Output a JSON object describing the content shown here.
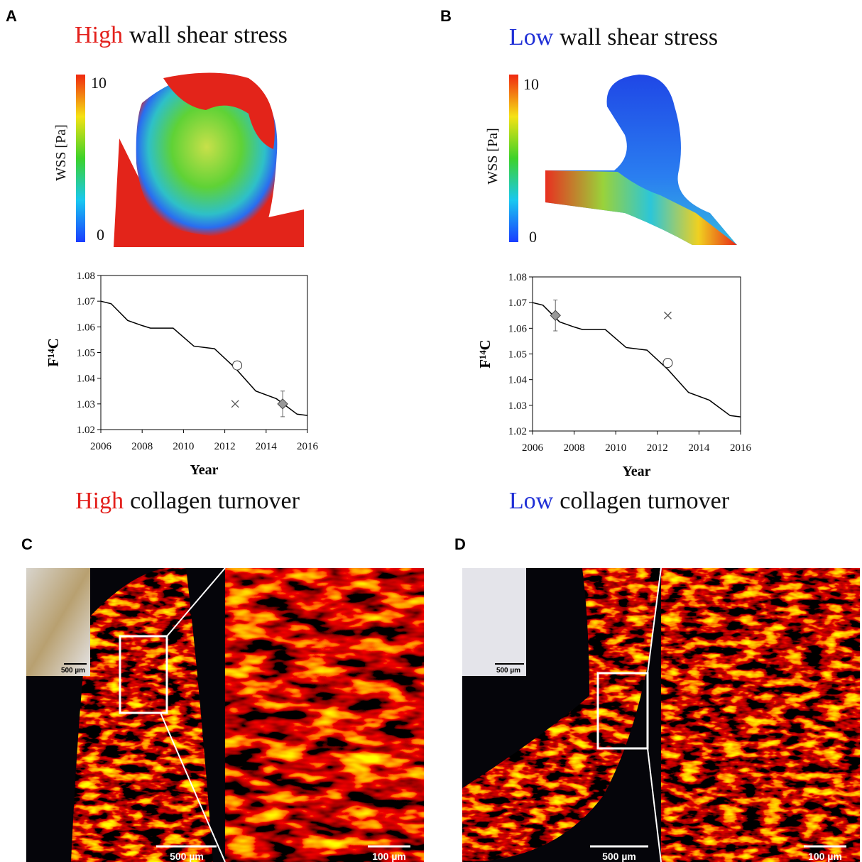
{
  "panels": [
    {
      "label": "A",
      "title_highlight": "High",
      "title_rest": "wall shear stress",
      "colorbar_label": "WSS [Pa]",
      "colorbar_max": "10",
      "colorbar_min": "0",
      "footer_highlight": "High",
      "footer_rest": "collagen turnover"
    },
    {
      "label": "B",
      "title_highlight": "Low",
      "title_rest": "wall shear stress",
      "colorbar_label": "WSS [Pa]",
      "colorbar_max": "10",
      "colorbar_min": "0",
      "footer_highlight": "Low",
      "footer_rest": "collagen turnover"
    },
    {
      "label": "C",
      "scale_bars": [
        "500 µm",
        "500 µm",
        "100 µm"
      ]
    },
    {
      "label": "D",
      "scale_bars": [
        "500 µm",
        "500 µm",
        "100 µm"
      ]
    }
  ],
  "chart_data": [
    {
      "type": "line",
      "xlabel": "Year",
      "ylabel": "F¹⁴C",
      "xlim": [
        2006,
        2016
      ],
      "xticks": [
        2006,
        2008,
        2010,
        2012,
        2014,
        2016
      ],
      "ylim": [
        1.02,
        1.08
      ],
      "yticks": [
        1.02,
        1.03,
        1.04,
        1.05,
        1.06,
        1.07,
        1.08
      ],
      "series": [
        {
          "color": "#000000",
          "x": [
            2006,
            2006.5,
            2007.3,
            2008,
            2008.4,
            2009.5,
            2010.5,
            2011.5,
            2012.5,
            2013.5,
            2014.5,
            2015.5,
            2016
          ],
          "values": [
            1.07,
            1.069,
            1.0625,
            1.0605,
            1.0595,
            1.0595,
            1.0525,
            1.0515,
            1.044,
            1.035,
            1.032,
            1.026,
            1.0255
          ]
        },
        {
          "marker": "circle",
          "color": "#ffffff",
          "x": [
            2012.6
          ],
          "values": [
            1.045
          ]
        },
        {
          "marker": "cross",
          "color": "#555555",
          "x": [
            2012.5
          ],
          "values": [
            1.03
          ]
        },
        {
          "marker": "diamond",
          "color": "#999999",
          "x": [
            2014.8
          ],
          "values": [
            1.03
          ],
          "errors": [
            0.005
          ]
        }
      ]
    },
    {
      "type": "line",
      "xlabel": "Year",
      "ylabel": "F¹⁴C",
      "xlim": [
        2006,
        2016
      ],
      "xticks": [
        2006,
        2008,
        2010,
        2012,
        2014,
        2016
      ],
      "ylim": [
        1.02,
        1.08
      ],
      "yticks": [
        1.02,
        1.03,
        1.04,
        1.05,
        1.06,
        1.07,
        1.08
      ],
      "series": [
        {
          "color": "#000000",
          "x": [
            2006,
            2006.5,
            2007.3,
            2008,
            2008.4,
            2009.5,
            2010.5,
            2011.5,
            2012.5,
            2013.5,
            2014.5,
            2015.5,
            2016
          ],
          "values": [
            1.07,
            1.069,
            1.0625,
            1.0605,
            1.0595,
            1.0595,
            1.0525,
            1.0515,
            1.044,
            1.035,
            1.032,
            1.026,
            1.0255
          ]
        },
        {
          "marker": "circle",
          "color": "#ffffff",
          "x": [
            2012.5
          ],
          "values": [
            1.0465
          ]
        },
        {
          "marker": "cross",
          "color": "#555555",
          "x": [
            2012.5
          ],
          "values": [
            1.065
          ]
        },
        {
          "marker": "diamond",
          "color": "#999999",
          "x": [
            2007.1
          ],
          "values": [
            1.065
          ],
          "errors": [
            0.006
          ]
        }
      ]
    }
  ]
}
